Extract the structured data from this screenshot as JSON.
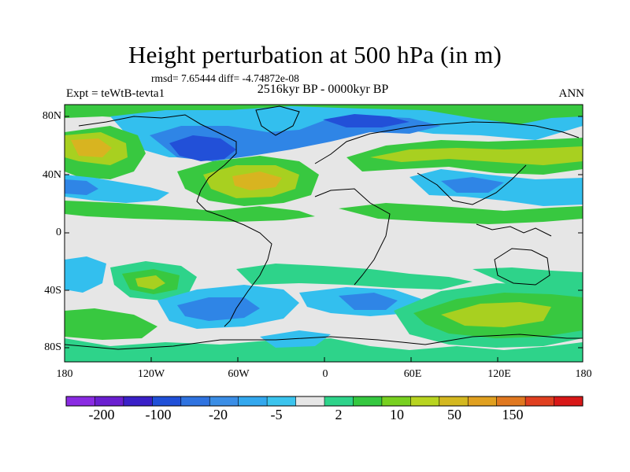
{
  "title": "Height perturbation at 500 hPa (in m)",
  "stats_text": "rmsd= 7.65444  diff= -4.74872e-08",
  "period": "2516kyr BP - 0000kyr BP",
  "experiment": "Expt = teWtB-tevta1",
  "season": "ANN",
  "lat_labels": [
    "80N",
    "40N",
    "0",
    "40S",
    "80S"
  ],
  "lon_labels": [
    "180",
    "120W",
    "60W",
    "0",
    "60E",
    "120E",
    "180"
  ],
  "colorbar": {
    "colors": [
      "#8a2be2",
      "#6a1fd0",
      "#3a20c8",
      "#2050d8",
      "#2f73e0",
      "#3b8ee6",
      "#33a8ee",
      "#3bc4ee",
      "#e6e6e6",
      "#2ed38a",
      "#35c840",
      "#78d020",
      "#b8d420",
      "#d4b820",
      "#e0a020",
      "#e07820",
      "#e04020",
      "#d81818"
    ],
    "labels": [
      "-200",
      "-100",
      "-20",
      "-5",
      "2",
      "10",
      "50",
      "150"
    ]
  },
  "field_colors": {
    "neutral": "#e6e6e6",
    "light_blue": "#33bfee",
    "blue": "#2f85e6",
    "dark_blue": "#2250d8",
    "teal": "#2ed38a",
    "green": "#38c840",
    "yellow_green": "#a8d020",
    "orange": "#d8b420",
    "coast": "#000000"
  }
}
